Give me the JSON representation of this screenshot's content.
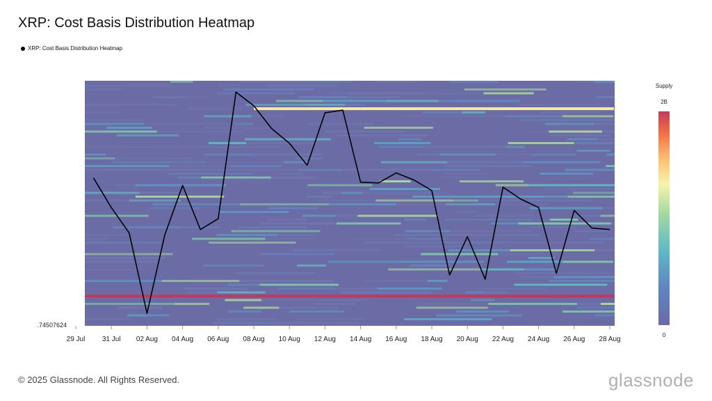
{
  "header": {
    "title": "XRP: Cost Basis Distribution Heatmap"
  },
  "legend": {
    "label": "XRP: Cost Basis Distribution Heatmap"
  },
  "footer": {
    "copyright": "© 2025 Glassnode. All Rights Reserved."
  },
  "brand": {
    "logo_text": "glassnode",
    "watermark_text": "glassnode"
  },
  "colorbar": {
    "title": "Supply",
    "max_label": "2B",
    "min_label": "0"
  },
  "chart_data": {
    "type": "heatmap",
    "title": "XRP: Cost Basis Distribution Heatmap",
    "x_tick_labels": [
      "29 Jul",
      "31 Jul",
      "02 Aug",
      "04 Aug",
      "06 Aug",
      "08 Aug",
      "10 Aug",
      "12 Aug",
      "14 Aug",
      "16 Aug",
      "18 Aug",
      "20 Aug",
      "22 Aug",
      "24 Aug",
      "26 Aug",
      "28 Aug"
    ],
    "y_tick_labels": [
      ".74507624"
    ],
    "colorscale": [
      "#6a6aa8",
      "#5f86c2",
      "#5fb9c6",
      "#a2d9a1",
      "#f7f4a9",
      "#fdbf6f",
      "#f46d43",
      "#c33a5c"
    ],
    "colorbar_range": [
      0,
      2000000000
    ],
    "series": [
      {
        "name": "XRP: Cost Basis Distribution Heatmap",
        "type": "line",
        "color": "#000000",
        "x": [
          "30 Jul",
          "31 Jul",
          "01 Aug",
          "02 Aug",
          "03 Aug",
          "04 Aug",
          "05 Aug",
          "06 Aug",
          "07 Aug",
          "08 Aug",
          "09 Aug",
          "10 Aug",
          "11 Aug",
          "12 Aug",
          "13 Aug",
          "14 Aug",
          "15 Aug",
          "16 Aug",
          "17 Aug",
          "18 Aug",
          "19 Aug",
          "20 Aug",
          "21 Aug",
          "22 Aug",
          "23 Aug",
          "24 Aug",
          "25 Aug",
          "26 Aug",
          "27 Aug",
          "28 Aug"
        ],
        "y_position_fraction": [
          0.603,
          0.482,
          0.379,
          0.051,
          0.371,
          0.573,
          0.393,
          0.437,
          0.954,
          0.898,
          0.805,
          0.745,
          0.655,
          0.869,
          0.88,
          0.586,
          0.583,
          0.624,
          0.595,
          0.552,
          0.207,
          0.364,
          0.19,
          0.566,
          0.517,
          0.483,
          0.214,
          0.471,
          0.399,
          0.393
        ]
      }
    ],
    "bands": [
      {
        "description": "high-supply cost basis band",
        "color": "#f8eba3",
        "y_position_fraction": 0.886,
        "x_start": "08 Aug",
        "x_end": "29 Aug"
      },
      {
        "description": "high-supply cost basis band",
        "color": "#c8375a",
        "y_position_fraction": 0.121,
        "x_start": "29 Jul",
        "x_end": "29 Aug"
      }
    ]
  }
}
